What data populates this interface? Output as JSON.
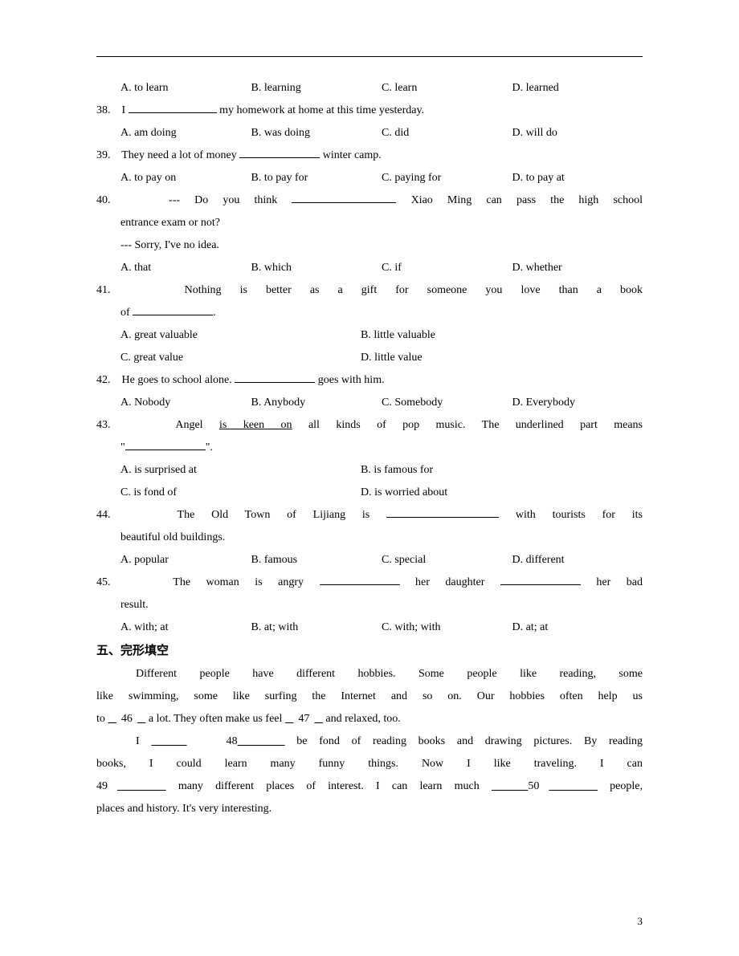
{
  "page_number": "3",
  "q37_choices": {
    "a": "A. to learn",
    "b": "B. learning",
    "c": "C. learn",
    "d": "D. learned"
  },
  "q38": {
    "num": "38.",
    "pre": "I ",
    "post": " my homework at home at this time yesterday.",
    "a": "A. am doing",
    "b": "B. was doing",
    "c": "C. did",
    "d": "D. will do"
  },
  "q39": {
    "num": "39.",
    "pre": "They need a lot of money ",
    "post": " winter camp.",
    "a": "A. to pay on",
    "b": "B. to pay for",
    "c": "C. paying for",
    "d": "D. to pay at"
  },
  "q40": {
    "num": "40.",
    "line1_pre": "--- Do you think ",
    "line1_post": " Xiao Ming can pass the high school",
    "line2": "entrance exam or not?",
    "line3": "--- Sorry, I've no idea.",
    "a": "A. that",
    "b": "B. which",
    "c": "C. if",
    "d": "D. whether"
  },
  "q41": {
    "num": "41.",
    "line1": "Nothing is better as a gift for someone you love than a book",
    "line2_pre": "of ",
    "line2_post": ".",
    "a": "A. great valuable",
    "b": "B. little valuable",
    "c": "C. great value",
    "d": "D. little value"
  },
  "q42": {
    "num": "42.",
    "pre": "He goes to school alone. ",
    "post": " goes with him.",
    "a": "A. Nobody",
    "b": "B. Anybody",
    "c": "C. Somebody",
    "d": "D. Everybody"
  },
  "q43": {
    "num": "43.",
    "pre": "Angel ",
    "underlined": "is keen on",
    "post1": " all kinds of pop music. The underlined part means",
    "line2_pre": "\"",
    "line2_post": "\".",
    "a": "A. is surprised at",
    "b": "B. is famous for",
    "c": "C. is fond of",
    "d": "D. is worried about"
  },
  "q44": {
    "num": "44.",
    "pre": "The Old Town of Lijiang is ",
    "post": " with tourists for its",
    "line2": "beautiful old buildings.",
    "a": "A. popular",
    "b": "B. famous",
    "c": "C. special",
    "d": "D. different"
  },
  "q45": {
    "num": "45.",
    "pre": "The woman is angry ",
    "mid": " her daughter ",
    "post": " her bad",
    "line2": "result.",
    "a": "A. with; at",
    "b": "B. at; with",
    "c": "C. with; with",
    "d": "D. at; at"
  },
  "section5_title": "五、完形填空",
  "cloze": {
    "p1_a": "Different people have different hobbies. Some people like reading, some",
    "p1_b": "like swimming, some like surfing the Internet and so on. Our hobbies often help us",
    "p1_c_pre": "to ",
    "p1_c_46": "46",
    "p1_c_mid": " a lot. They often make us feel ",
    "p1_c_47": "47",
    "p1_c_post": " and relaxed, too.",
    "p2_a_pre": "I ",
    "p2_a_48": "48",
    "p2_a_post": " be fond of reading books and drawing pictures. By reading",
    "p2_b": "books, I could learn many funny things. Now I like traveling. I can",
    "p2_c_49": "49",
    "p2_c_mid": " many different places of interest. I can learn much ",
    "p2_c_50": "50",
    "p2_c_post": " people,",
    "p2_d": "places and history. It's very interesting."
  }
}
